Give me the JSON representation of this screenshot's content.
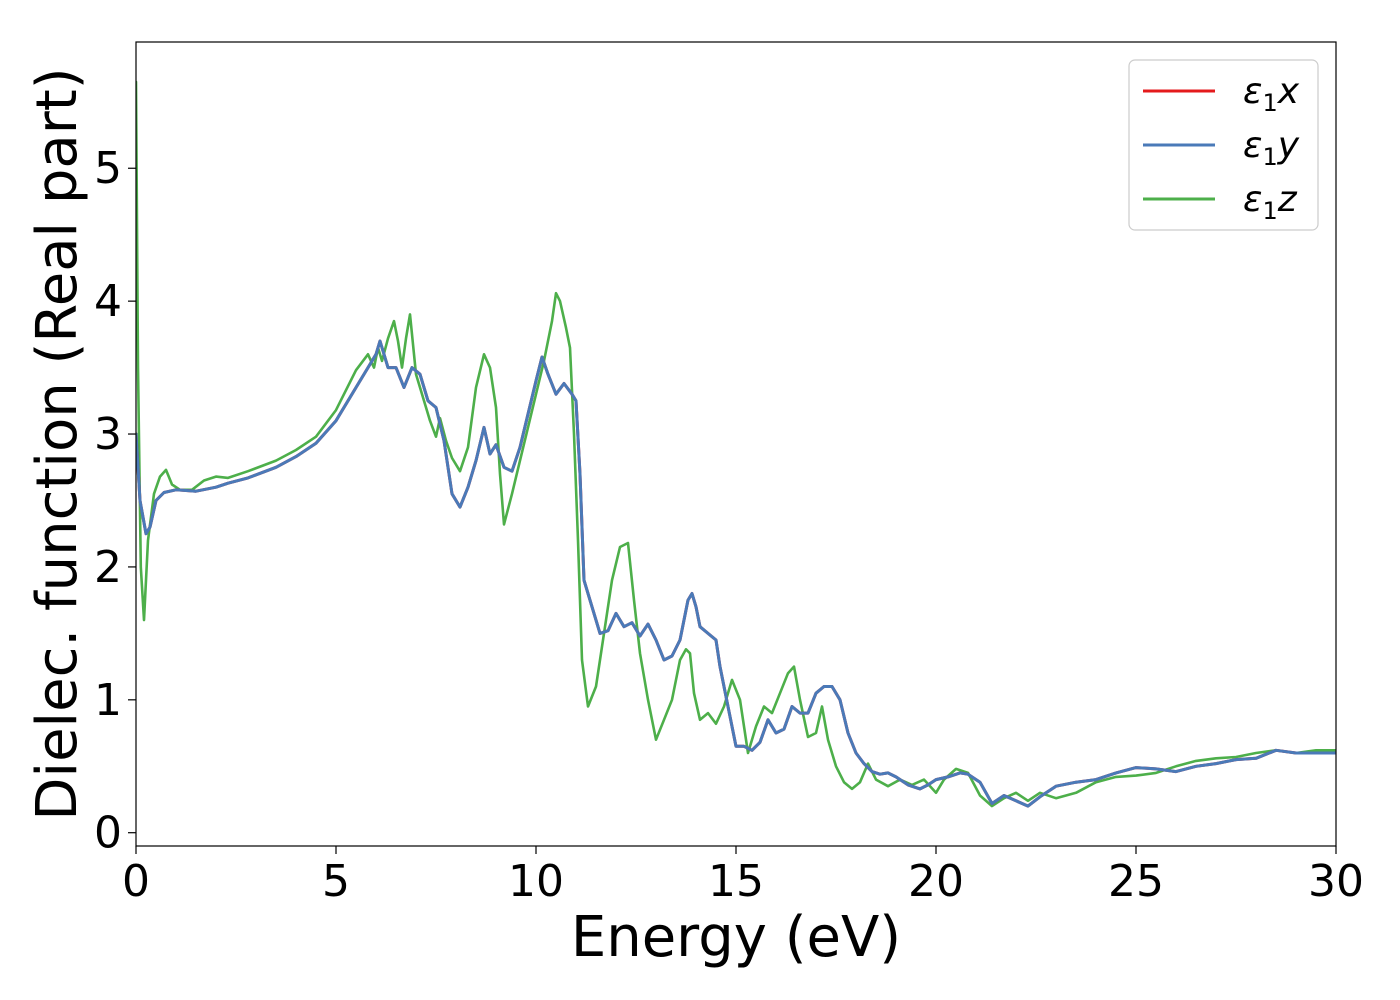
{
  "chart_data": {
    "type": "line",
    "title": "",
    "xlabel": "Energy (eV)",
    "ylabel": "Dielec. function (Real part)",
    "xlim": [
      0,
      30
    ],
    "ylim": [
      -0.1,
      5.95
    ],
    "xticks": [
      0,
      5,
      10,
      15,
      20,
      25,
      30
    ],
    "yticks": [
      0,
      1,
      2,
      3,
      4,
      5
    ],
    "grid": false,
    "legend_position": "top-right",
    "series": [
      {
        "name": "ε₁x",
        "legend": {
          "symbol": "ε",
          "sub": "1",
          "axis": "x"
        },
        "color": "#e41a1c",
        "hidden_under": "ε₁y",
        "x": [
          0,
          0.1,
          0.25,
          0.35,
          0.5,
          0.7,
          1.0,
          1.5,
          2.0,
          2.3,
          2.8,
          3.5,
          4.0,
          4.5,
          5.0,
          5.5,
          5.8,
          6.0,
          6.1,
          6.3,
          6.5,
          6.7,
          6.9,
          7.1,
          7.3,
          7.5,
          7.7,
          7.9,
          8.1,
          8.3,
          8.5,
          8.7,
          8.85,
          9.0,
          9.2,
          9.4,
          9.6,
          9.8,
          10.0,
          10.15,
          10.3,
          10.5,
          10.7,
          10.9,
          11.0,
          11.1,
          11.2,
          11.4,
          11.6,
          11.8,
          12.0,
          12.2,
          12.4,
          12.6,
          12.8,
          13.0,
          13.2,
          13.4,
          13.6,
          13.8,
          13.9,
          14.0,
          14.1,
          14.3,
          14.5,
          14.6,
          14.8,
          15.0,
          15.2,
          15.4,
          15.6,
          15.8,
          16.0,
          16.2,
          16.4,
          16.6,
          16.8,
          17.0,
          17.2,
          17.4,
          17.6,
          17.8,
          18.0,
          18.2,
          18.4,
          18.6,
          18.8,
          19.0,
          19.3,
          19.6,
          19.8,
          20.0,
          20.3,
          20.6,
          20.8,
          21.1,
          21.4,
          21.7,
          22.0,
          22.3,
          22.6,
          23.0,
          23.5,
          24.0,
          24.5,
          25.0,
          25.5,
          26.0,
          26.5,
          27.0,
          27.5,
          28.0,
          28.5,
          29.0,
          29.5,
          30.0
        ],
        "y": [
          3.0,
          2.5,
          2.25,
          2.3,
          2.5,
          2.56,
          2.58,
          2.57,
          2.6,
          2.63,
          2.67,
          2.75,
          2.83,
          2.93,
          3.1,
          3.35,
          3.5,
          3.6,
          3.7,
          3.5,
          3.5,
          3.35,
          3.5,
          3.45,
          3.25,
          3.2,
          2.95,
          2.55,
          2.45,
          2.6,
          2.8,
          3.05,
          2.85,
          2.92,
          2.75,
          2.72,
          2.9,
          3.15,
          3.4,
          3.58,
          3.45,
          3.3,
          3.38,
          3.3,
          3.25,
          2.7,
          1.9,
          1.7,
          1.5,
          1.52,
          1.65,
          1.55,
          1.58,
          1.48,
          1.57,
          1.45,
          1.3,
          1.33,
          1.45,
          1.75,
          1.8,
          1.7,
          1.55,
          1.5,
          1.45,
          1.25,
          0.95,
          0.65,
          0.65,
          0.62,
          0.68,
          0.85,
          0.75,
          0.78,
          0.95,
          0.9,
          0.9,
          1.05,
          1.1,
          1.1,
          1.0,
          0.75,
          0.6,
          0.52,
          0.46,
          0.44,
          0.45,
          0.42,
          0.36,
          0.33,
          0.36,
          0.4,
          0.42,
          0.45,
          0.44,
          0.38,
          0.22,
          0.28,
          0.24,
          0.2,
          0.27,
          0.35,
          0.38,
          0.4,
          0.45,
          0.49,
          0.48,
          0.46,
          0.5,
          0.52,
          0.55,
          0.56,
          0.62,
          0.6,
          0.6,
          0.6
        ]
      },
      {
        "name": "ε₁y",
        "legend": {
          "symbol": "ε",
          "sub": "1",
          "axis": "y"
        },
        "color": "#4a7ab8",
        "x": [
          0,
          0.1,
          0.25,
          0.35,
          0.5,
          0.7,
          1.0,
          1.5,
          2.0,
          2.3,
          2.8,
          3.5,
          4.0,
          4.5,
          5.0,
          5.5,
          5.8,
          6.0,
          6.1,
          6.3,
          6.5,
          6.7,
          6.9,
          7.1,
          7.3,
          7.5,
          7.7,
          7.9,
          8.1,
          8.3,
          8.5,
          8.7,
          8.85,
          9.0,
          9.2,
          9.4,
          9.6,
          9.8,
          10.0,
          10.15,
          10.3,
          10.5,
          10.7,
          10.9,
          11.0,
          11.1,
          11.2,
          11.4,
          11.6,
          11.8,
          12.0,
          12.2,
          12.4,
          12.6,
          12.8,
          13.0,
          13.2,
          13.4,
          13.6,
          13.8,
          13.9,
          14.0,
          14.1,
          14.3,
          14.5,
          14.6,
          14.8,
          15.0,
          15.2,
          15.4,
          15.6,
          15.8,
          16.0,
          16.2,
          16.4,
          16.6,
          16.8,
          17.0,
          17.2,
          17.4,
          17.6,
          17.8,
          18.0,
          18.2,
          18.4,
          18.6,
          18.8,
          19.0,
          19.3,
          19.6,
          19.8,
          20.0,
          20.3,
          20.6,
          20.8,
          21.1,
          21.4,
          21.7,
          22.0,
          22.3,
          22.6,
          23.0,
          23.5,
          24.0,
          24.5,
          25.0,
          25.5,
          26.0,
          26.5,
          27.0,
          27.5,
          28.0,
          28.5,
          29.0,
          29.5,
          30.0
        ],
        "y": [
          3.0,
          2.5,
          2.25,
          2.3,
          2.5,
          2.56,
          2.58,
          2.57,
          2.6,
          2.63,
          2.67,
          2.75,
          2.83,
          2.93,
          3.1,
          3.35,
          3.5,
          3.6,
          3.7,
          3.5,
          3.5,
          3.35,
          3.5,
          3.45,
          3.25,
          3.2,
          2.95,
          2.55,
          2.45,
          2.6,
          2.8,
          3.05,
          2.85,
          2.92,
          2.75,
          2.72,
          2.9,
          3.15,
          3.4,
          3.58,
          3.45,
          3.3,
          3.38,
          3.3,
          3.25,
          2.7,
          1.9,
          1.7,
          1.5,
          1.52,
          1.65,
          1.55,
          1.58,
          1.48,
          1.57,
          1.45,
          1.3,
          1.33,
          1.45,
          1.75,
          1.8,
          1.7,
          1.55,
          1.5,
          1.45,
          1.25,
          0.95,
          0.65,
          0.65,
          0.62,
          0.68,
          0.85,
          0.75,
          0.78,
          0.95,
          0.9,
          0.9,
          1.05,
          1.1,
          1.1,
          1.0,
          0.75,
          0.6,
          0.52,
          0.46,
          0.44,
          0.45,
          0.42,
          0.36,
          0.33,
          0.36,
          0.4,
          0.42,
          0.45,
          0.44,
          0.38,
          0.22,
          0.28,
          0.24,
          0.2,
          0.27,
          0.35,
          0.38,
          0.4,
          0.45,
          0.49,
          0.48,
          0.46,
          0.5,
          0.52,
          0.55,
          0.56,
          0.62,
          0.6,
          0.6,
          0.6
        ]
      },
      {
        "name": "ε₁z",
        "legend": {
          "symbol": "ε",
          "sub": "1",
          "axis": "z"
        },
        "color": "#4daf4a",
        "x": [
          0,
          0.05,
          0.12,
          0.2,
          0.3,
          0.45,
          0.6,
          0.75,
          0.9,
          1.1,
          1.4,
          1.7,
          2.0,
          2.3,
          2.8,
          3.5,
          4.0,
          4.5,
          5.0,
          5.5,
          5.8,
          5.95,
          6.05,
          6.15,
          6.3,
          6.45,
          6.55,
          6.65,
          6.75,
          6.85,
          7.0,
          7.2,
          7.35,
          7.5,
          7.6,
          7.75,
          7.9,
          8.1,
          8.3,
          8.5,
          8.7,
          8.85,
          9.0,
          9.1,
          9.2,
          9.4,
          9.6,
          9.8,
          10.0,
          10.2,
          10.4,
          10.5,
          10.6,
          10.75,
          10.85,
          10.95,
          11.05,
          11.15,
          11.3,
          11.5,
          11.7,
          11.9,
          12.1,
          12.3,
          12.45,
          12.6,
          12.8,
          13.0,
          13.2,
          13.4,
          13.6,
          13.75,
          13.85,
          13.95,
          14.1,
          14.3,
          14.5,
          14.7,
          14.9,
          15.1,
          15.3,
          15.5,
          15.7,
          15.9,
          16.1,
          16.3,
          16.45,
          16.6,
          16.8,
          17.0,
          17.15,
          17.3,
          17.5,
          17.7,
          17.9,
          18.1,
          18.3,
          18.5,
          18.8,
          19.1,
          19.4,
          19.7,
          20.0,
          20.2,
          20.5,
          20.8,
          21.1,
          21.4,
          21.7,
          22.0,
          22.3,
          22.6,
          23.0,
          23.5,
          24.0,
          24.5,
          25.0,
          25.5,
          26.0,
          26.5,
          27.0,
          27.5,
          28.0,
          28.5,
          29.0,
          29.5,
          30.0
        ],
        "y": [
          5.65,
          3.5,
          2.0,
          1.6,
          2.2,
          2.55,
          2.68,
          2.73,
          2.62,
          2.58,
          2.58,
          2.65,
          2.68,
          2.67,
          2.72,
          2.8,
          2.88,
          2.98,
          3.18,
          3.48,
          3.6,
          3.5,
          3.65,
          3.55,
          3.72,
          3.85,
          3.7,
          3.5,
          3.72,
          3.9,
          3.45,
          3.25,
          3.1,
          2.98,
          3.12,
          2.95,
          2.82,
          2.72,
          2.9,
          3.35,
          3.6,
          3.5,
          3.2,
          2.7,
          2.32,
          2.55,
          2.8,
          3.05,
          3.3,
          3.55,
          3.85,
          4.06,
          4.0,
          3.8,
          3.65,
          3.0,
          2.2,
          1.3,
          0.95,
          1.1,
          1.5,
          1.9,
          2.15,
          2.18,
          1.75,
          1.35,
          1.0,
          0.7,
          0.85,
          1.0,
          1.3,
          1.38,
          1.35,
          1.05,
          0.85,
          0.9,
          0.82,
          0.95,
          1.15,
          1.0,
          0.6,
          0.8,
          0.95,
          0.9,
          1.05,
          1.2,
          1.25,
          1.0,
          0.72,
          0.75,
          0.95,
          0.7,
          0.5,
          0.38,
          0.33,
          0.38,
          0.52,
          0.4,
          0.35,
          0.4,
          0.36,
          0.4,
          0.3,
          0.4,
          0.48,
          0.45,
          0.28,
          0.2,
          0.26,
          0.3,
          0.24,
          0.3,
          0.26,
          0.3,
          0.38,
          0.42,
          0.43,
          0.45,
          0.5,
          0.54,
          0.56,
          0.57,
          0.6,
          0.62,
          0.6,
          0.62,
          0.62
        ]
      }
    ]
  }
}
